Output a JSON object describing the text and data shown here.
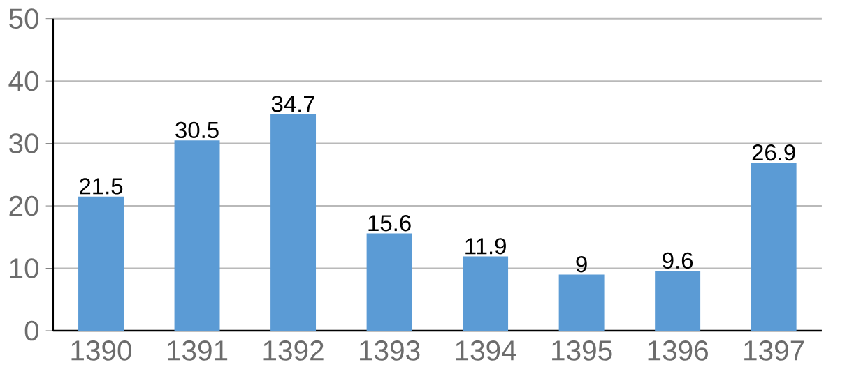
{
  "chart_data": {
    "type": "bar",
    "categories": [
      "1390",
      "1391",
      "1392",
      "1393",
      "1394",
      "1395",
      "1396",
      "1397"
    ],
    "values": [
      21.5,
      30.5,
      34.7,
      15.6,
      11.9,
      9,
      9.6,
      26.9
    ],
    "color": "#5b9bd5",
    "ylim": [
      0,
      50
    ],
    "yticks": [
      0,
      10,
      20,
      30,
      40,
      50
    ],
    "grid": "y",
    "data_labels": true
  }
}
